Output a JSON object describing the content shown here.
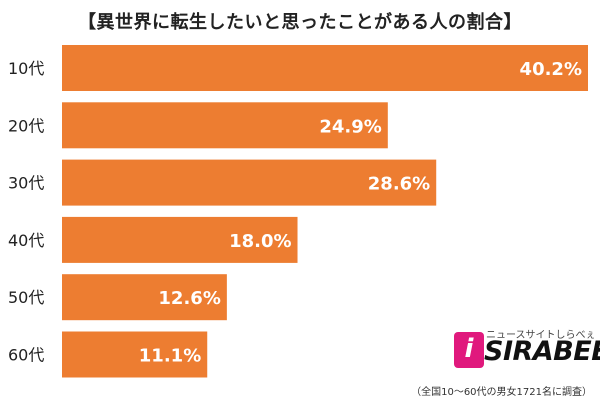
{
  "chart_data": {
    "type": "bar",
    "orientation": "horizontal",
    "title": "【異世界に転生したいと思ったことがある人の割合】",
    "categories": [
      "10代",
      "20代",
      "30代",
      "40代",
      "50代",
      "60代"
    ],
    "values": [
      40.2,
      24.9,
      28.6,
      18.0,
      12.6,
      11.1
    ],
    "value_labels": [
      "40.2%",
      "24.9%",
      "28.6%",
      "18.0%",
      "12.6%",
      "11.1%"
    ],
    "xlim": [
      0,
      40.2
    ],
    "grid": false,
    "bar_color": "#ed7d31"
  },
  "logo": {
    "tagline": "ニュースサイトしらべぇ",
    "brand": "SIRABEE",
    "mark": "i",
    "accent_color": "#e0197d"
  },
  "note": "（全国10～60代の男女1721名に調査）"
}
